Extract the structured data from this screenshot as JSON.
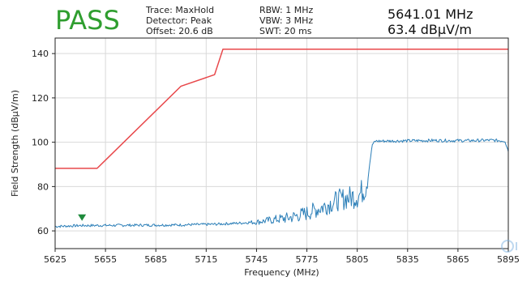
{
  "header": {
    "verdict": "PASS",
    "trace": "Trace: MaxHold",
    "detector": "Detector: Peak",
    "offset": "Offset: 20.6 dB",
    "rbw": "RBW: 1 MHz",
    "vbw": "VBW: 3 MHz",
    "swt": "SWT: 20 ms",
    "marker_freq": "5641.01 MHz",
    "marker_level": "63.4 dBµV/m"
  },
  "colors": {
    "verdict": "#2f9e2f",
    "limit": "#e8474a",
    "trace": "#2c7fb8",
    "marker": "#1e8a3c"
  },
  "chart_data": {
    "type": "line",
    "xlabel": "Frequency (MHz)",
    "ylabel": "Field Strength (dBµV/m)",
    "xlim": [
      5625,
      5895
    ],
    "ylim": [
      52,
      147
    ],
    "xticks": [
      5625,
      5655,
      5685,
      5715,
      5745,
      5775,
      5805,
      5835,
      5865,
      5895
    ],
    "yticks": [
      60,
      80,
      100,
      120,
      140
    ],
    "grid": true,
    "series": [
      {
        "role": "limit",
        "color": "#e8474a",
        "x": [
          5625,
          5650,
          5700,
          5720,
          5725,
          5895
        ],
        "y": [
          88.2,
          88.2,
          125.3,
          130.5,
          142,
          142
        ]
      },
      {
        "role": "trace",
        "color": "#2c7fb8",
        "x": [
          5625,
          5640,
          5660,
          5680,
          5700,
          5720,
          5735,
          5745,
          5755,
          5765,
          5775,
          5782,
          5788,
          5794,
          5800,
          5806,
          5810,
          5812,
          5814,
          5816,
          5830,
          5850,
          5870,
          5885,
          5893,
          5895
        ],
        "y": [
          62,
          62.4,
          62.5,
          62.6,
          62.7,
          63,
          63.5,
          64,
          65,
          66,
          68,
          70,
          72,
          74,
          75,
          76,
          80,
          88,
          99,
          100.5,
          100.6,
          100.8,
          100.7,
          100.9,
          100.6,
          96
        ]
      }
    ],
    "marker": {
      "x": 5641.01,
      "y": 63.4
    }
  }
}
